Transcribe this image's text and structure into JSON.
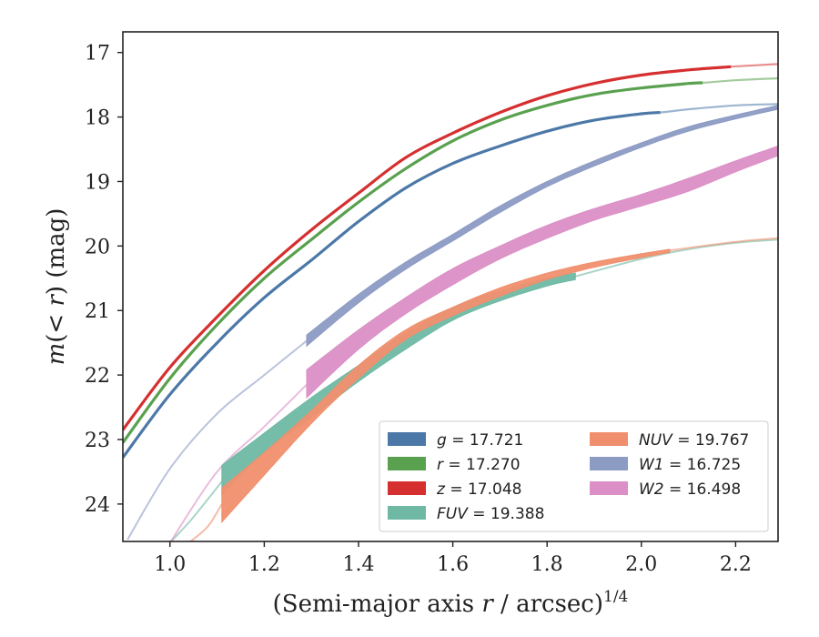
{
  "chart_data": {
    "type": "line",
    "title": "",
    "xlabel_main": "(Semi-major axis ",
    "xlabel_var": "r",
    "xlabel_unit": " / arcsec)",
    "xlabel_sup": "1/4",
    "ylabel_pre": "m(",
    "ylabel_var": "< r",
    "ylabel_post": ") (mag)",
    "xlim": [
      0.9,
      2.29
    ],
    "ylim": [
      24.58,
      16.68
    ],
    "y_inverted": true,
    "grid": false,
    "legend_position": "lower-right",
    "x_ticks": [
      "1.0",
      "1.2",
      "1.4",
      "1.6",
      "1.8",
      "2.0",
      "2.2"
    ],
    "y_ticks": [
      "17",
      "18",
      "19",
      "20",
      "21",
      "22",
      "23",
      "24"
    ],
    "series": [
      {
        "name": "g = 17.721",
        "name_var": "g",
        "name_val": " = 17.721",
        "color": "#4c78a8",
        "thin_band": true,
        "x": [
          0.9,
          1.0,
          1.1,
          1.2,
          1.3,
          1.4,
          1.5,
          1.6,
          1.7,
          1.8,
          1.9,
          2.0,
          2.04,
          2.1,
          2.2,
          2.29
        ],
        "y": [
          23.28,
          22.3,
          21.5,
          20.8,
          20.22,
          19.62,
          19.1,
          18.72,
          18.45,
          18.22,
          18.05,
          17.95,
          17.93,
          17.88,
          17.82,
          17.8
        ],
        "solid_to": 2.04
      },
      {
        "name": "r = 17.270",
        "name_var": "r",
        "name_val": " = 17.270",
        "color": "#59a14f",
        "thin_band": true,
        "x": [
          0.9,
          1.0,
          1.1,
          1.2,
          1.3,
          1.4,
          1.5,
          1.6,
          1.7,
          1.8,
          1.9,
          2.0,
          2.1,
          2.13,
          2.2,
          2.29
        ],
        "y": [
          23.05,
          22.05,
          21.22,
          20.5,
          19.9,
          19.32,
          18.8,
          18.37,
          18.05,
          17.82,
          17.65,
          17.55,
          17.48,
          17.47,
          17.43,
          17.4
        ],
        "solid_to": 2.13
      },
      {
        "name": "z = 17.048",
        "name_var": "z",
        "name_val": " = 17.048",
        "color": "#d62f30",
        "thin_band": true,
        "x": [
          0.9,
          1.0,
          1.1,
          1.2,
          1.3,
          1.4,
          1.5,
          1.6,
          1.7,
          1.8,
          1.9,
          2.0,
          2.1,
          2.19,
          2.29
        ],
        "y": [
          22.85,
          21.88,
          21.1,
          20.38,
          19.75,
          19.18,
          18.63,
          18.25,
          17.93,
          17.67,
          17.48,
          17.35,
          17.27,
          17.22,
          17.18
        ],
        "solid_to": 2.19
      },
      {
        "name": "FUV = 19.388",
        "name_var": "FUV",
        "name_val": " = 19.388",
        "color": "#6fb9a4",
        "thin_band": false,
        "x": [
          1.11,
          1.2,
          1.3,
          1.4,
          1.5,
          1.6,
          1.7,
          1.8,
          1.86
        ],
        "y_top": [
          23.4,
          22.9,
          22.35,
          21.85,
          21.35,
          20.95,
          20.7,
          20.5,
          20.42
        ],
        "y_bot": [
          23.85,
          23.2,
          22.65,
          22.1,
          21.6,
          21.15,
          20.85,
          20.62,
          20.52
        ],
        "faint_x": [
          1.0,
          1.05,
          1.11,
          1.86,
          2.0,
          2.1,
          2.2,
          2.29
        ],
        "faint_y": [
          24.6,
          24.2,
          23.65,
          20.47,
          20.2,
          20.05,
          19.95,
          19.9
        ]
      },
      {
        "name": "NUV = 19.767",
        "name_var": "NUV",
        "name_val": " = 19.767",
        "color": "#f08f6e",
        "thin_band": false,
        "x": [
          1.11,
          1.2,
          1.3,
          1.4,
          1.5,
          1.6,
          1.7,
          1.8,
          1.9,
          2.0,
          2.06
        ],
        "y_top": [
          23.75,
          23.2,
          22.55,
          21.85,
          21.3,
          20.95,
          20.65,
          20.42,
          20.25,
          20.12,
          20.05
        ],
        "y_bot": [
          24.28,
          23.55,
          22.75,
          22.05,
          21.45,
          21.08,
          20.78,
          20.52,
          20.33,
          20.18,
          20.1
        ],
        "faint_x": [
          1.04,
          1.08,
          1.11,
          2.06,
          2.15,
          2.22,
          2.29
        ],
        "faint_y": [
          24.6,
          24.35,
          24.0,
          20.07,
          19.98,
          19.92,
          19.88
        ]
      },
      {
        "name": "W1 = 16.725",
        "name_var": "W1",
        "name_val": " = 16.725",
        "color": "#8c9bc4",
        "thin_band": false,
        "x": [
          1.29,
          1.4,
          1.5,
          1.6,
          1.7,
          1.8,
          1.9,
          2.0,
          2.1,
          2.2,
          2.29
        ],
        "y_top": [
          21.38,
          20.75,
          20.25,
          19.82,
          19.38,
          19.0,
          18.68,
          18.4,
          18.15,
          17.97,
          17.82
        ],
        "y_bot": [
          21.55,
          20.88,
          20.36,
          19.92,
          19.48,
          19.08,
          18.76,
          18.47,
          18.22,
          18.03,
          17.88
        ],
        "faint_x": [
          0.91,
          1.0,
          1.1,
          1.2,
          1.29
        ],
        "faint_y": [
          24.55,
          23.45,
          22.6,
          22.0,
          21.47
        ]
      },
      {
        "name": "W2 = 16.498",
        "name_var": "W2",
        "name_val": " = 16.498",
        "color": "#db8fc6",
        "thin_band": false,
        "x": [
          1.29,
          1.4,
          1.5,
          1.6,
          1.7,
          1.8,
          1.9,
          2.0,
          2.1,
          2.2,
          2.29
        ],
        "y_top": [
          21.92,
          21.3,
          20.8,
          20.35,
          20.0,
          19.68,
          19.42,
          19.2,
          18.95,
          18.68,
          18.45
        ],
        "y_bot": [
          22.35,
          21.6,
          21.05,
          20.6,
          20.2,
          19.88,
          19.6,
          19.38,
          19.15,
          18.85,
          18.6
        ],
        "faint_x": [
          1.0,
          1.1,
          1.2,
          1.29
        ],
        "faint_y": [
          24.6,
          23.5,
          22.8,
          22.15
        ]
      }
    ]
  }
}
